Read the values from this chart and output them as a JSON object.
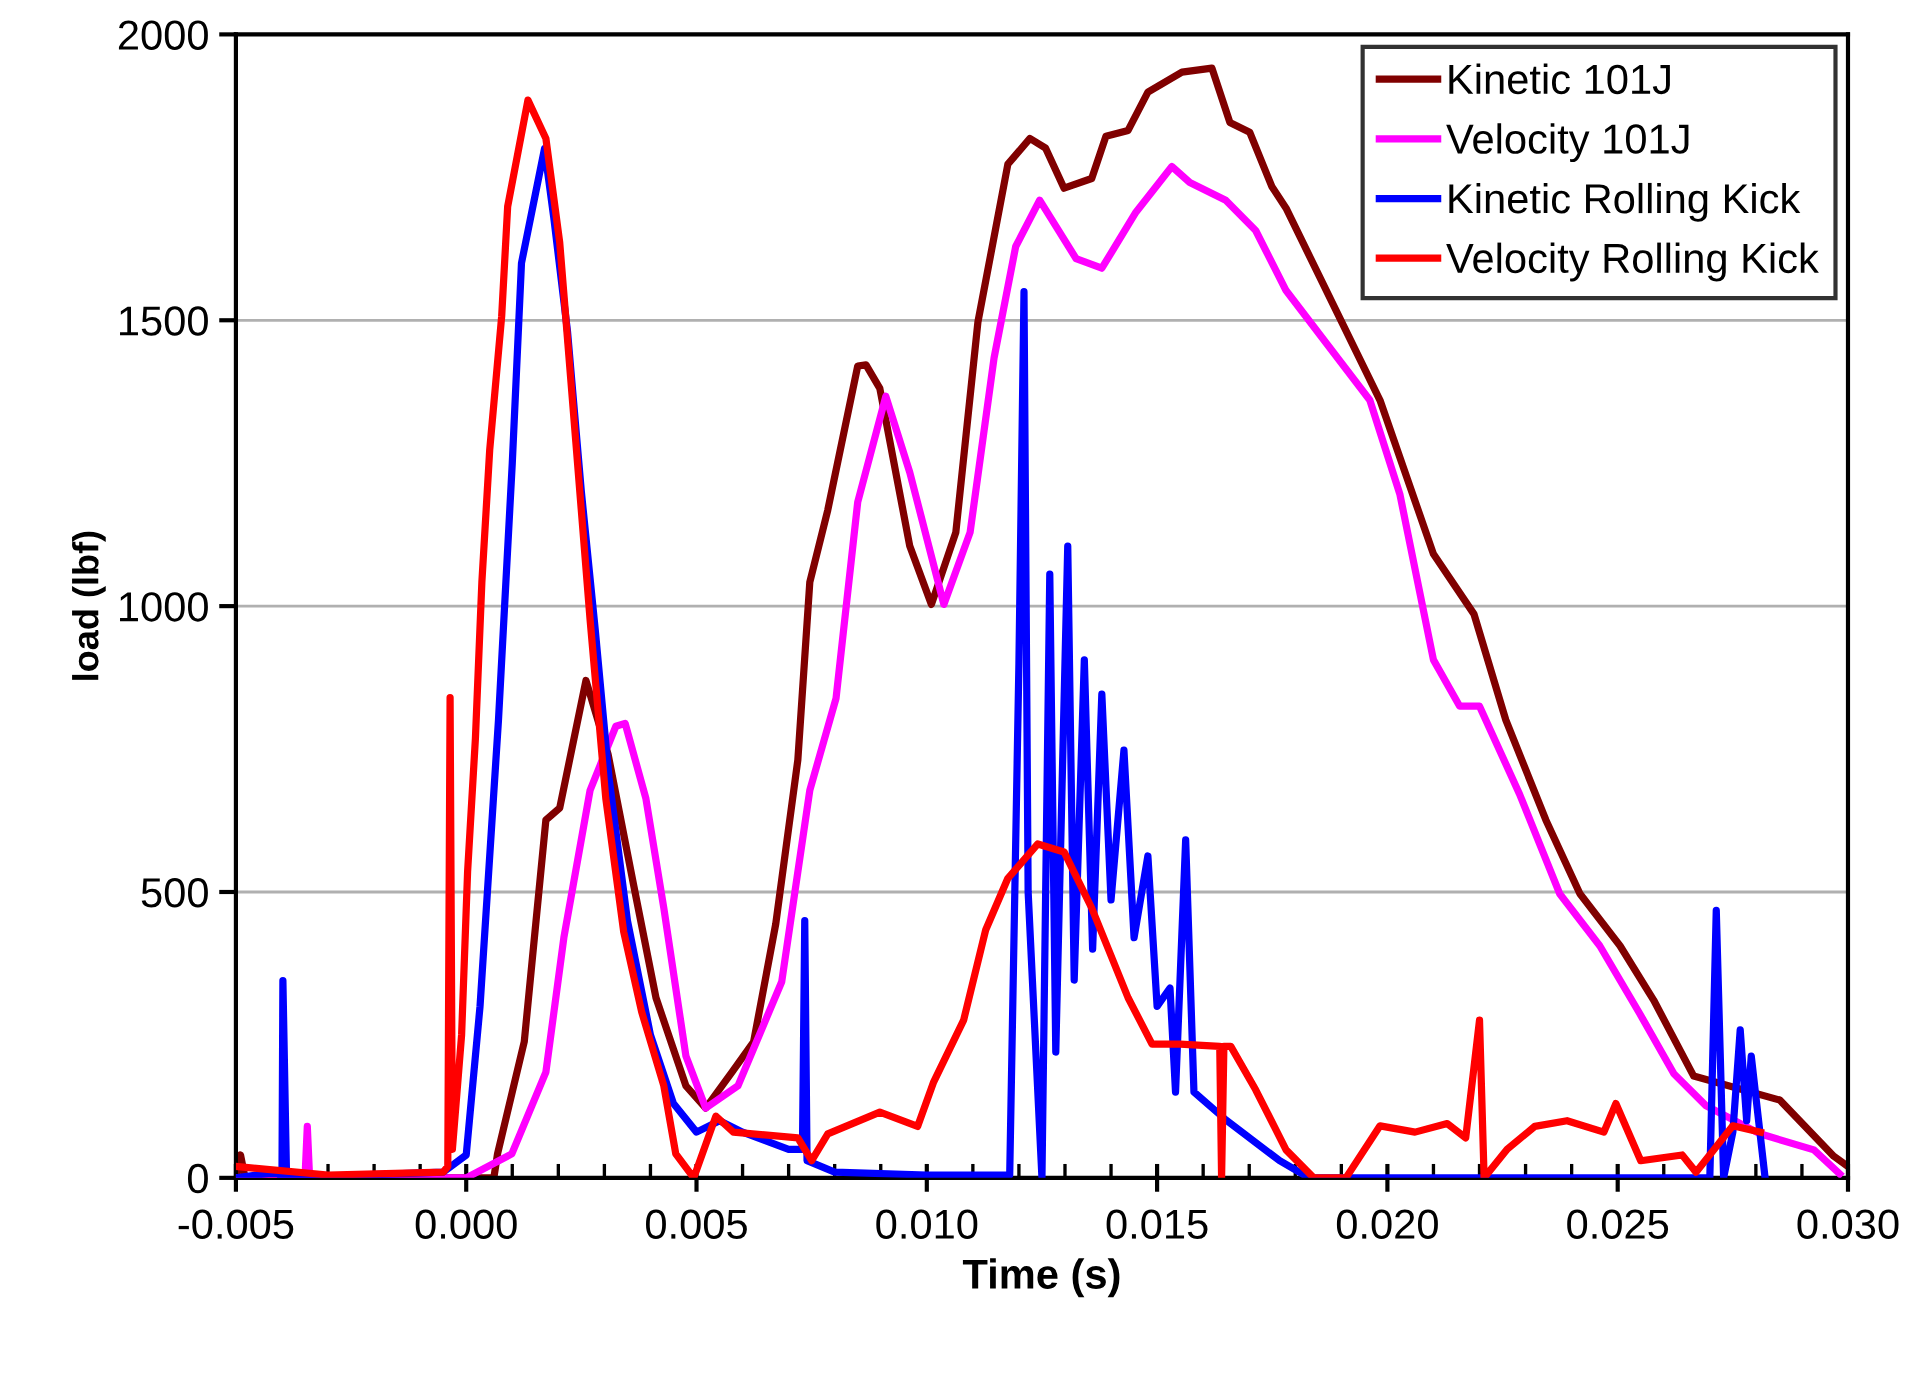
{
  "chart_data": {
    "type": "line",
    "xlabel": "Time (s)",
    "ylabel": "load (lbf)",
    "xlim": [
      -0.005,
      0.03
    ],
    "ylim": [
      0,
      2000
    ],
    "xticks": [
      {
        "value": -0.005,
        "label": "-0.005"
      },
      {
        "value": 0.0,
        "label": "0.000"
      },
      {
        "value": 0.005,
        "label": "0.005"
      },
      {
        "value": 0.01,
        "label": "0.010"
      },
      {
        "value": 0.015,
        "label": "0.015"
      },
      {
        "value": 0.02,
        "label": "0.020"
      },
      {
        "value": 0.025,
        "label": "0.025"
      },
      {
        "value": 0.03,
        "label": "0.030"
      },
      {
        "value": -0.004,
        "label": null
      },
      {
        "value": -0.003,
        "label": null
      },
      {
        "value": -0.002,
        "label": null
      },
      {
        "value": -0.001,
        "label": null
      },
      {
        "value": 0.001,
        "label": null
      },
      {
        "value": 0.002,
        "label": null
      },
      {
        "value": 0.003,
        "label": null
      },
      {
        "value": 0.004,
        "label": null
      },
      {
        "value": 0.006,
        "label": null
      },
      {
        "value": 0.007,
        "label": null
      },
      {
        "value": 0.008,
        "label": null
      },
      {
        "value": 0.009,
        "label": null
      },
      {
        "value": 0.011,
        "label": null
      },
      {
        "value": 0.012,
        "label": null
      },
      {
        "value": 0.013,
        "label": null
      },
      {
        "value": 0.014,
        "label": null
      },
      {
        "value": 0.016,
        "label": null
      },
      {
        "value": 0.017,
        "label": null
      },
      {
        "value": 0.018,
        "label": null
      },
      {
        "value": 0.019,
        "label": null
      },
      {
        "value": 0.021,
        "label": null
      },
      {
        "value": 0.022,
        "label": null
      },
      {
        "value": 0.023,
        "label": null
      },
      {
        "value": 0.024,
        "label": null
      },
      {
        "value": 0.026,
        "label": null
      },
      {
        "value": 0.027,
        "label": null
      },
      {
        "value": 0.028,
        "label": null
      },
      {
        "value": 0.029,
        "label": null
      }
    ],
    "yticks": [
      0,
      500,
      1000,
      1500,
      2000
    ],
    "grid": "y",
    "legend": "top right",
    "marker": "none",
    "line_style": "solid",
    "series": [
      {
        "name": "Kinetic 101J",
        "color": "#800000",
        "x": [
          -0.005,
          -0.0049,
          -0.0048,
          0.0,
          0.0006,
          0.00068,
          0.00126,
          0.00173,
          0.00203,
          0.0026,
          0.00308,
          0.00364,
          0.00412,
          0.00477,
          0.0052,
          0.00577,
          0.00624,
          0.00672,
          0.0072,
          0.00746,
          0.00785,
          0.0085,
          0.00868,
          0.00898,
          0.00963,
          0.0101,
          0.01063,
          0.01111,
          0.01176,
          0.01224,
          0.01258,
          0.01298,
          0.01358,
          0.01389,
          0.01437,
          0.0148,
          0.01554,
          0.01619,
          0.01658,
          0.01701,
          0.01749,
          0.0178,
          0.01984,
          0.021,
          0.02188,
          0.02257,
          0.02344,
          0.02418,
          0.02505,
          0.02578,
          0.02665,
          0.02852,
          0.02969,
          0.03
        ],
        "values": [
          0,
          40,
          0,
          0,
          0,
          42,
          238,
          626,
          647,
          870,
          741,
          510,
          315,
          161,
          122,
          185,
          238,
          444,
          731,
          1042,
          1168,
          1420,
          1422,
          1381,
          1105,
          1003,
          1129,
          1497,
          1773,
          1818,
          1801,
          1731,
          1748,
          1822,
          1832,
          1899,
          1934,
          1941,
          1846,
          1829,
          1734,
          1696,
          1360,
          1091,
          986,
          801,
          626,
          497,
          406,
          311,
          178,
          136,
          38,
          20
        ]
      },
      {
        "name": "Velocity 101J",
        "color": "#ff00ff",
        "x": [
          -0.005,
          -0.0035,
          -0.00345,
          -0.0034,
          0.0,
          0.00099,
          0.00173,
          0.00212,
          0.00269,
          0.00325,
          0.00345,
          0.0039,
          0.00429,
          0.00477,
          0.0052,
          0.0059,
          0.00685,
          0.00746,
          0.00803,
          0.0085,
          0.00911,
          0.00963,
          0.01037,
          0.01094,
          0.01146,
          0.01193,
          0.01245,
          0.01324,
          0.0138,
          0.01454,
          0.01532,
          0.01571,
          0.01649,
          0.01714,
          0.0178,
          0.01962,
          0.02027,
          0.021,
          0.02157,
          0.022,
          0.02287,
          0.02374,
          0.02461,
          0.02548,
          0.02622,
          0.02692,
          0.02809,
          0.02926,
          0.02982
        ],
        "values": [
          0,
          0,
          90,
          0,
          0,
          42,
          185,
          420,
          678,
          790,
          795,
          664,
          472,
          213,
          122,
          161,
          343,
          678,
          839,
          1182,
          1367,
          1234,
          1003,
          1129,
          1434,
          1629,
          1710,
          1608,
          1591,
          1689,
          1769,
          1741,
          1710,
          1657,
          1552,
          1360,
          1196,
          906,
          825,
          825,
          671,
          497,
          406,
          287,
          182,
          126,
          77,
          49,
          7
        ]
      },
      {
        "name": "Kinetic Rolling Kick",
        "color": "#0000ff",
        "x": [
          -0.005,
          -0.0041,
          -0.004,
          -0.00398,
          -0.0039,
          -0.0005,
          0.0,
          0.0003,
          0.0007,
          0.001,
          0.0012,
          0.0015,
          0.0017,
          0.0019,
          0.0022,
          0.0025,
          0.0028,
          0.0031,
          0.0035,
          0.004,
          0.0045,
          0.005,
          0.0055,
          0.006,
          0.007,
          0.0073,
          0.00735,
          0.0074,
          0.008,
          0.01,
          0.0118,
          0.012,
          0.01211,
          0.0122,
          0.0125,
          0.01267,
          0.0128,
          0.01306,
          0.0132,
          0.01342,
          0.0136,
          0.0138,
          0.014,
          0.01428,
          0.0145,
          0.0148,
          0.015,
          0.01528,
          0.0154,
          0.01562,
          0.0158,
          0.0165,
          0.01766,
          0.0183,
          0.027,
          0.02714,
          0.0273,
          0.0275,
          0.02766,
          0.0278,
          0.0279,
          0.0282
        ],
        "values": [
          0,
          10,
          0,
          345,
          0,
          10,
          40,
          300,
          800,
          1250,
          1600,
          1720,
          1800,
          1680,
          1480,
          1200,
          960,
          700,
          450,
          250,
          130,
          80,
          100,
          80,
          50,
          50,
          450,
          30,
          10,
          5,
          5,
          900,
          1550,
          500,
          0,
          1056,
          220,
          1105,
          346,
          906,
          400,
          846,
          486,
          748,
          420,
          563,
          300,
          332,
          150,
          591,
          150,
          101,
          30,
          0,
          0,
          468,
          0,
          80,
          259,
          100,
          213,
          0
        ]
      },
      {
        "name": "Velocity Rolling Kick",
        "color": "#ff0000",
        "x": [
          -0.005,
          -0.003,
          -0.0005,
          -0.0004,
          -0.00035,
          -0.0003,
          -0.0001,
          3e-05,
          0.0002,
          0.00034,
          0.00051,
          0.00077,
          0.0009,
          0.00134,
          0.00173,
          0.00203,
          0.00238,
          0.00269,
          0.00303,
          0.00342,
          0.00381,
          0.00429,
          0.00455,
          0.00494,
          0.00542,
          0.0058,
          0.0072,
          0.0075,
          0.00785,
          0.00898,
          0.0098,
          0.01015,
          0.0108,
          0.01128,
          0.01176,
          0.01241,
          0.01298,
          0.01358,
          0.01437,
          0.01489,
          0.0155,
          0.01636,
          0.0164,
          0.01645,
          0.0166,
          0.01714,
          0.0178,
          0.0184,
          0.0191,
          0.01984,
          0.0206,
          0.0213,
          0.0217,
          0.022,
          0.0221,
          0.0226,
          0.0232,
          0.0239,
          0.0247,
          0.02496,
          0.0255,
          0.0264,
          0.0267,
          0.0275,
          0.0281
        ],
        "values": [
          20,
          5,
          10,
          20,
          840,
          50,
          250,
          535,
          769,
          1042,
          1273,
          1507,
          1699,
          1885,
          1818,
          1636,
          1287,
          976,
          664,
          430,
          290,
          161,
          42,
          0,
          108,
          80,
          70,
          30,
          77,
          115,
          90,
          168,
          276,
          434,
          524,
          584,
          570,
          472,
          315,
          234,
          234,
          230,
          0,
          230,
          230,
          154,
          49,
          0,
          0,
          91,
          80,
          95,
          70,
          276,
          0,
          50,
          90,
          100,
          80,
          130,
          30,
          40,
          10,
          91,
          80
        ]
      }
    ]
  }
}
